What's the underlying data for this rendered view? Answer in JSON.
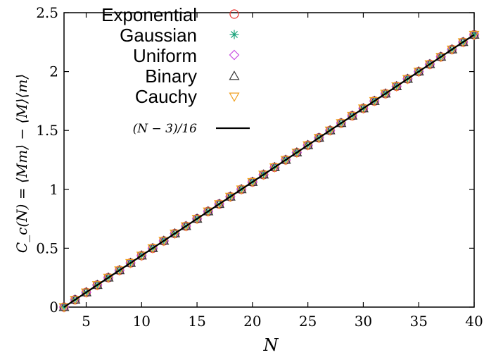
{
  "chart_data": {
    "type": "scatter",
    "title": "",
    "xlabel": "N",
    "ylabel": "C_c(N) = ⟨Mm⟩ − ⟨M⟩⟨m⟩",
    "xlim": [
      3,
      40
    ],
    "ylim": [
      0,
      2.5
    ],
    "xticks": [
      5,
      10,
      15,
      20,
      25,
      30,
      35,
      40
    ],
    "yticks": [
      0,
      0.5,
      1,
      1.5,
      2,
      2.5
    ],
    "xtick_labels": [
      "5",
      "10",
      "15",
      "20",
      "25",
      "30",
      "35",
      "40"
    ],
    "ytick_labels": [
      "0",
      "0.5",
      "1",
      "1.5",
      "2",
      "2.5"
    ],
    "grid": false,
    "legend_position": "top-left",
    "x": [
      3,
      4,
      5,
      6,
      7,
      8,
      9,
      10,
      11,
      12,
      13,
      14,
      15,
      16,
      17,
      18,
      19,
      20,
      21,
      22,
      23,
      24,
      25,
      26,
      27,
      28,
      29,
      30,
      31,
      32,
      33,
      34,
      35,
      36,
      37,
      38,
      39,
      40
    ],
    "series": [
      {
        "name": "Exponential",
        "marker": "circle",
        "color": "#e8302a",
        "values": [
          0,
          0.0625,
          0.125,
          0.1875,
          0.25,
          0.3125,
          0.375,
          0.4375,
          0.5,
          0.5625,
          0.625,
          0.6875,
          0.75,
          0.8125,
          0.875,
          0.9375,
          1.0,
          1.0625,
          1.125,
          1.1875,
          1.25,
          1.3125,
          1.375,
          1.4375,
          1.5,
          1.5625,
          1.625,
          1.6875,
          1.75,
          1.8125,
          1.875,
          1.9375,
          2.0,
          2.0625,
          2.125,
          2.1875,
          2.25,
          2.3125
        ]
      },
      {
        "name": "Gaussian",
        "marker": "star",
        "color": "#1aa37a",
        "values": [
          0,
          0.0625,
          0.125,
          0.1875,
          0.25,
          0.3125,
          0.375,
          0.4375,
          0.5,
          0.5625,
          0.625,
          0.6875,
          0.75,
          0.8125,
          0.875,
          0.9375,
          1.0,
          1.0625,
          1.125,
          1.1875,
          1.25,
          1.3125,
          1.375,
          1.4375,
          1.5,
          1.5625,
          1.625,
          1.6875,
          1.75,
          1.8125,
          1.875,
          1.9375,
          2.0,
          2.0625,
          2.125,
          2.1875,
          2.25,
          2.3125
        ]
      },
      {
        "name": "Uniform",
        "marker": "diamond",
        "color": "#c84fe0",
        "values": [
          0,
          0.0625,
          0.125,
          0.1875,
          0.25,
          0.3125,
          0.375,
          0.4375,
          0.5,
          0.5625,
          0.625,
          0.6875,
          0.75,
          0.8125,
          0.875,
          0.9375,
          1.0,
          1.0625,
          1.125,
          1.1875,
          1.25,
          1.3125,
          1.375,
          1.4375,
          1.5,
          1.5625,
          1.625,
          1.6875,
          1.75,
          1.8125,
          1.875,
          1.9375,
          2.0,
          2.0625,
          2.125,
          2.1875,
          2.25,
          2.3125
        ]
      },
      {
        "name": "Binary",
        "marker": "triangle-up",
        "color": "#333333",
        "values": [
          0,
          0.0625,
          0.125,
          0.1875,
          0.25,
          0.3125,
          0.375,
          0.4375,
          0.5,
          0.5625,
          0.625,
          0.6875,
          0.75,
          0.8125,
          0.875,
          0.9375,
          1.0,
          1.0625,
          1.125,
          1.1875,
          1.25,
          1.3125,
          1.375,
          1.4375,
          1.5,
          1.5625,
          1.625,
          1.6875,
          1.75,
          1.8125,
          1.875,
          1.9375,
          2.0,
          2.0625,
          2.125,
          2.1875,
          2.25,
          2.3125
        ]
      },
      {
        "name": "Cauchy",
        "marker": "triangle-down",
        "color": "#f0a020",
        "values": [
          0,
          0.0625,
          0.125,
          0.1875,
          0.25,
          0.3125,
          0.375,
          0.4375,
          0.5,
          0.5625,
          0.625,
          0.6875,
          0.75,
          0.8125,
          0.875,
          0.9375,
          1.0,
          1.0625,
          1.125,
          1.1875,
          1.25,
          1.3125,
          1.375,
          1.4375,
          1.5,
          1.5625,
          1.625,
          1.6875,
          1.75,
          1.8125,
          1.875,
          1.9375,
          2.0,
          2.0625,
          2.125,
          2.1875,
          2.25,
          2.3125
        ]
      }
    ],
    "line": {
      "name": "(N − 3)/16",
      "color": "#000000",
      "slope": 0.0625,
      "intercept": -0.1875,
      "x_range": [
        3,
        40
      ]
    }
  }
}
